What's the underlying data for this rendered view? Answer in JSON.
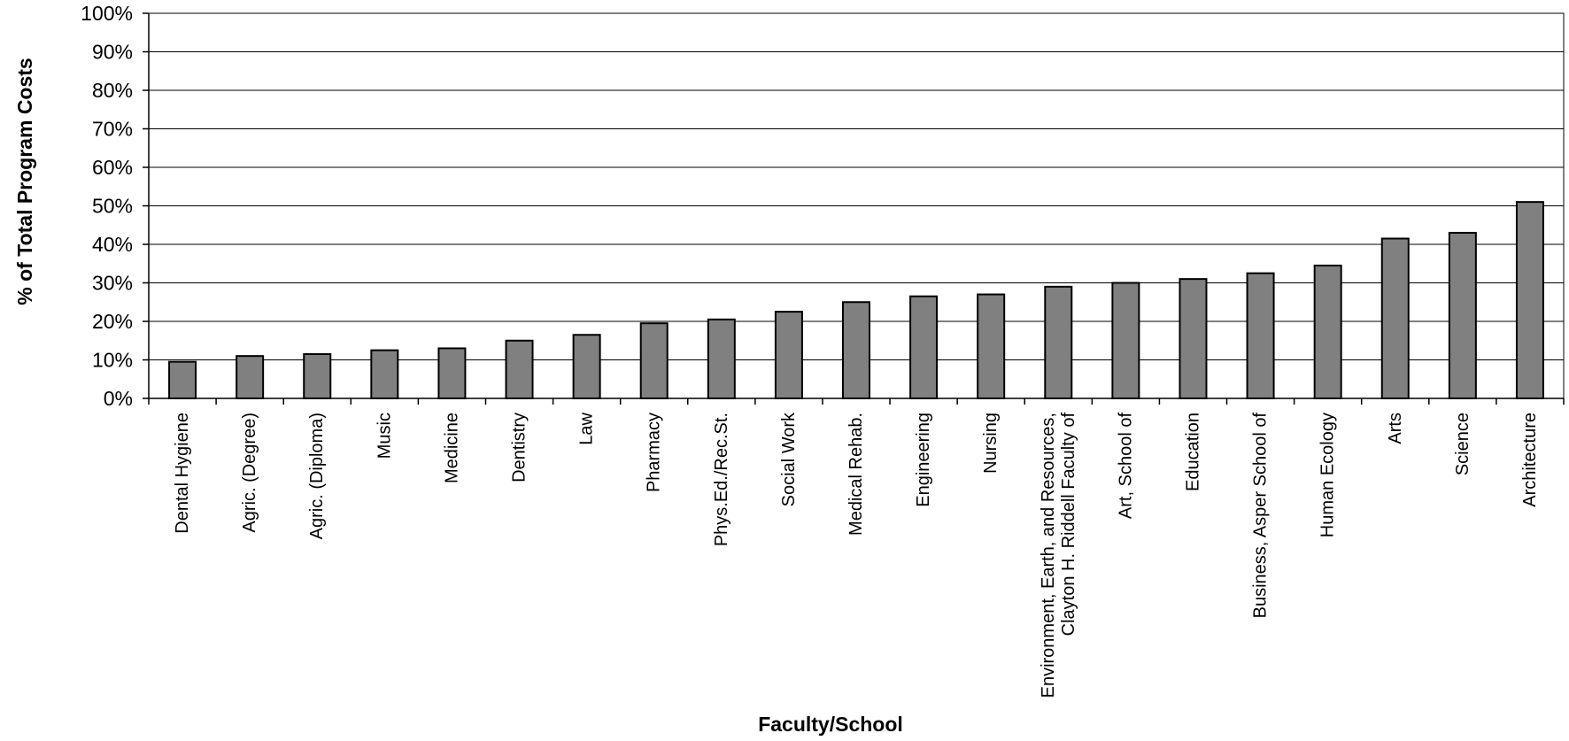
{
  "chart_data": {
    "type": "bar",
    "title": "",
    "xlabel": "Faculty/School",
    "ylabel": "% of Total Program Costs",
    "ylim": [
      0,
      100
    ],
    "y_ticks": [
      "0%",
      "10%",
      "20%",
      "30%",
      "40%",
      "50%",
      "60%",
      "70%",
      "80%",
      "90%",
      "100%"
    ],
    "grid": true,
    "legend": "none",
    "categories": [
      [
        "Dental Hygiene"
      ],
      [
        "Agric. (Degree)"
      ],
      [
        "Agric. (Diploma)"
      ],
      [
        "Music"
      ],
      [
        "Medicine"
      ],
      [
        "Dentistry"
      ],
      [
        "Law"
      ],
      [
        "Pharmacy"
      ],
      [
        "Phys.Ed./Rec.St."
      ],
      [
        "Social Work"
      ],
      [
        "Medical Rehab."
      ],
      [
        "Engineering"
      ],
      [
        "Nursing"
      ],
      [
        "Environment, Earth, and Resources,",
        "Clayton H. Riddell Faculty of"
      ],
      [
        "Art, School of"
      ],
      [
        "Education"
      ],
      [
        "Business, Asper School of"
      ],
      [
        "Human Ecology"
      ],
      [
        "Arts"
      ],
      [
        "Science"
      ],
      [
        "Architecture"
      ]
    ],
    "values": [
      9.5,
      11,
      11.5,
      12.5,
      13,
      15,
      16.5,
      19.5,
      20.5,
      22.5,
      25,
      26.5,
      27,
      29,
      30,
      31,
      32.5,
      34.5,
      41.5,
      43,
      51
    ],
    "colors": {
      "bar_fill": "#808080",
      "bar_stroke": "#000000",
      "grid": "#000000",
      "axis": "#000000"
    }
  }
}
